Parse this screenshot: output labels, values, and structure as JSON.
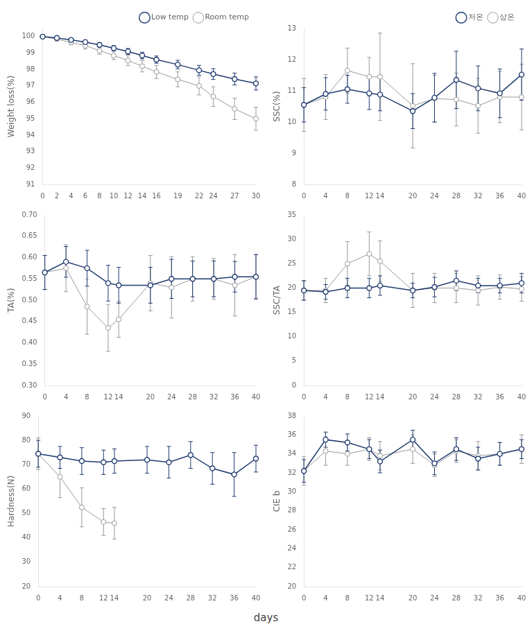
{
  "chart_data": [
    {
      "type": "line",
      "ylabel": "Weight loss(%)",
      "x": [
        0,
        2,
        4,
        6,
        8,
        10,
        12,
        14,
        16,
        19,
        22,
        24,
        27,
        30
      ],
      "xlim": [
        0,
        30
      ],
      "xticks": [
        0,
        2,
        4,
        6,
        8,
        10,
        12,
        14,
        16,
        19,
        22,
        24,
        27,
        30
      ],
      "ylim": [
        91,
        100.5
      ],
      "yticks": [
        91,
        92,
        93,
        94,
        95,
        96,
        97,
        98,
        99,
        100
      ],
      "grid": false,
      "legend": "upper right",
      "series": [
        {
          "name": "Room temp",
          "color": "#999999",
          "marker": "circle",
          "values": [
            100.0,
            99.85,
            99.65,
            99.45,
            99.15,
            98.85,
            98.55,
            98.2,
            97.85,
            97.4,
            97.0,
            96.35,
            95.6,
            95.0
          ],
          "errors": [
            0.0,
            0.12,
            0.15,
            0.2,
            0.22,
            0.25,
            0.3,
            0.35,
            0.4,
            0.45,
            0.55,
            0.6,
            0.65,
            0.7
          ]
        },
        {
          "name": "Low temp",
          "color": "#1e3a6e",
          "marker": "circle",
          "values": [
            100.0,
            99.92,
            99.8,
            99.67,
            99.5,
            99.3,
            99.1,
            98.85,
            98.6,
            98.3,
            97.95,
            97.72,
            97.42,
            97.15
          ],
          "errors": [
            0.0,
            0.06,
            0.08,
            0.1,
            0.12,
            0.15,
            0.18,
            0.2,
            0.22,
            0.26,
            0.3,
            0.33,
            0.36,
            0.4
          ]
        }
      ]
    },
    {
      "type": "line",
      "ylabel": "SSC(%)",
      "x": [
        0,
        4,
        8,
        12,
        14,
        20,
        24,
        28,
        32,
        36,
        40
      ],
      "xlim": [
        0,
        40
      ],
      "xticks": [
        0,
        4,
        8,
        12,
        14,
        20,
        24,
        28,
        32,
        36,
        40
      ],
      "ylim": [
        8,
        13
      ],
      "yticks": [
        8,
        9,
        10,
        11,
        12,
        13
      ],
      "grid": false,
      "legend": "upper right",
      "series": [
        {
          "name": "상온",
          "color": "#999999",
          "marker": "circle",
          "values": [
            10.55,
            10.8,
            11.65,
            11.45,
            11.45,
            10.52,
            10.75,
            10.72,
            10.52,
            10.8,
            10.8
          ],
          "errors": [
            0.85,
            0.72,
            0.72,
            0.62,
            1.4,
            1.35,
            0.75,
            0.85,
            0.88,
            0.82,
            1.05
          ]
        },
        {
          "name": "저온",
          "color": "#1e3a6e",
          "marker": "circle",
          "values": [
            10.55,
            10.9,
            11.05,
            10.92,
            10.88,
            10.35,
            10.78,
            11.35,
            11.08,
            10.92,
            11.52
          ],
          "errors": [
            0.55,
            0.52,
            0.45,
            0.52,
            0.52,
            0.56,
            0.78,
            0.92,
            0.72,
            0.78,
            0.82
          ]
        }
      ]
    },
    {
      "type": "line",
      "ylabel": "TA(%)",
      "x": [
        0,
        4,
        8,
        12,
        14,
        20,
        24,
        28,
        32,
        36,
        40
      ],
      "xlim": [
        0,
        40
      ],
      "xticks": [
        0,
        4,
        8,
        12,
        14,
        20,
        24,
        28,
        32,
        36,
        40
      ],
      "ylim": [
        0.3,
        0.7
      ],
      "yticks": [
        {
          "value": 0.3,
          "label": "0.30"
        },
        0.35,
        {
          "value": 0.4,
          "label": "0.40"
        },
        0.45,
        {
          "value": 0.5,
          "label": "0.50"
        },
        0.55,
        {
          "value": 0.6,
          "label": "0.60"
        },
        0.65,
        {
          "value": 0.7,
          "label": "0.70"
        }
      ],
      "grid": false,
      "series": [
        {
          "color": "#999999",
          "marker": "circle",
          "values": [
            0.565,
            0.575,
            0.485,
            0.435,
            0.455,
            0.54,
            0.53,
            0.55,
            0.55,
            0.535,
            0.555
          ],
          "errors": [
            0.04,
            0.055,
            0.065,
            0.055,
            0.042,
            0.065,
            0.072,
            0.052,
            0.048,
            0.072,
            0.052
          ]
        },
        {
          "color": "#1e3a6e",
          "marker": "circle",
          "values": [
            0.565,
            0.59,
            0.575,
            0.54,
            0.535,
            0.535,
            0.55,
            0.55,
            0.55,
            0.555,
            0.555
          ],
          "errors": [
            0.04,
            0.036,
            0.042,
            0.042,
            0.042,
            0.042,
            0.046,
            0.042,
            0.042,
            0.036,
            0.052
          ]
        }
      ]
    },
    {
      "type": "line",
      "ylabel": "SSC/TA",
      "x": [
        0,
        4,
        8,
        12,
        14,
        20,
        24,
        28,
        32,
        36,
        40
      ],
      "xlim": [
        0,
        40
      ],
      "xticks": [
        0,
        4,
        8,
        12,
        14,
        20,
        24,
        28,
        32,
        36,
        40
      ],
      "ylim": [
        0,
        35
      ],
      "yticks": [
        0,
        5,
        10,
        15,
        20,
        25,
        30,
        35
      ],
      "grid": false,
      "series": [
        {
          "color": "#999999",
          "marker": "circle",
          "values": [
            19.5,
            19.5,
            25.0,
            27.0,
            25.5,
            19.5,
            20.0,
            20.0,
            19.5,
            20.2,
            19.8
          ],
          "errors": [
            2.0,
            2.5,
            4.5,
            4.5,
            4.2,
            3.5,
            3.0,
            3.0,
            3.0,
            2.5,
            2.5
          ]
        },
        {
          "color": "#1e3a6e",
          "marker": "circle",
          "values": [
            19.5,
            19.2,
            20.0,
            20.0,
            20.5,
            19.5,
            20.2,
            21.5,
            20.5,
            20.5,
            21.0
          ],
          "errors": [
            2.0,
            1.5,
            2.0,
            2.0,
            2.0,
            1.5,
            2.0,
            2.0,
            1.5,
            1.5,
            2.0
          ]
        }
      ]
    },
    {
      "type": "line",
      "ylabel": "Hardness(N)",
      "x": [
        0,
        4,
        8,
        12,
        14,
        20,
        24,
        28,
        32,
        36,
        40
      ],
      "xlim": [
        0,
        40
      ],
      "xticks": [
        0,
        4,
        8,
        12,
        14,
        20,
        24,
        28,
        32,
        36,
        40
      ],
      "ylim": [
        20,
        90
      ],
      "yticks": [
        20,
        30,
        40,
        50,
        60,
        70,
        80,
        90
      ],
      "grid": false,
      "series": [
        {
          "color": "#999999",
          "marker": "circle",
          "values": [
            74.5,
            65.0,
            52.5,
            46.5,
            46.0,
            null,
            null,
            null,
            null,
            null,
            null
          ],
          "errors": [
            6.5,
            8.5,
            8.0,
            5.5,
            6.5,
            null,
            null,
            null,
            null,
            null,
            null
          ]
        },
        {
          "color": "#1e3a6e",
          "marker": "circle",
          "values": [
            74.5,
            73.0,
            71.5,
            71.0,
            71.5,
            72.0,
            71.0,
            74.0,
            68.5,
            66.0,
            72.5
          ],
          "errors": [
            5.5,
            4.5,
            5.5,
            5.0,
            5.0,
            5.5,
            6.5,
            5.5,
            6.5,
            9.0,
            5.5
          ]
        }
      ]
    },
    {
      "type": "line",
      "ylabel": "CIE b",
      "x": [
        0,
        4,
        8,
        12,
        14,
        20,
        24,
        28,
        32,
        36,
        40
      ],
      "xlim": [
        0,
        40
      ],
      "xticks": [
        0,
        4,
        8,
        12,
        14,
        20,
        24,
        28,
        32,
        36,
        40
      ],
      "ylim": [
        20,
        38
      ],
      "yticks": [
        20,
        22,
        24,
        26,
        28,
        30,
        32,
        34,
        36,
        38
      ],
      "grid": false,
      "series": [
        {
          "color": "#999999",
          "marker": "circle",
          "values": [
            32.2,
            34.3,
            34.0,
            34.5,
            33.8,
            34.5,
            32.8,
            34.3,
            33.8,
            34.0,
            34.5
          ],
          "errors": [
            1.5,
            1.5,
            1.2,
            1.2,
            1.5,
            1.5,
            1.2,
            1.2,
            1.5,
            1.2,
            1.5
          ]
        },
        {
          "color": "#1e3a6e",
          "marker": "circle",
          "values": [
            32.2,
            35.5,
            35.2,
            34.5,
            33.2,
            35.5,
            33.0,
            34.5,
            33.5,
            34.0,
            34.5
          ],
          "errors": [
            1.2,
            0.8,
            0.9,
            1.0,
            1.2,
            1.0,
            1.2,
            1.2,
            1.2,
            1.2,
            1.0
          ]
        }
      ]
    }
  ],
  "xlabel": "days"
}
